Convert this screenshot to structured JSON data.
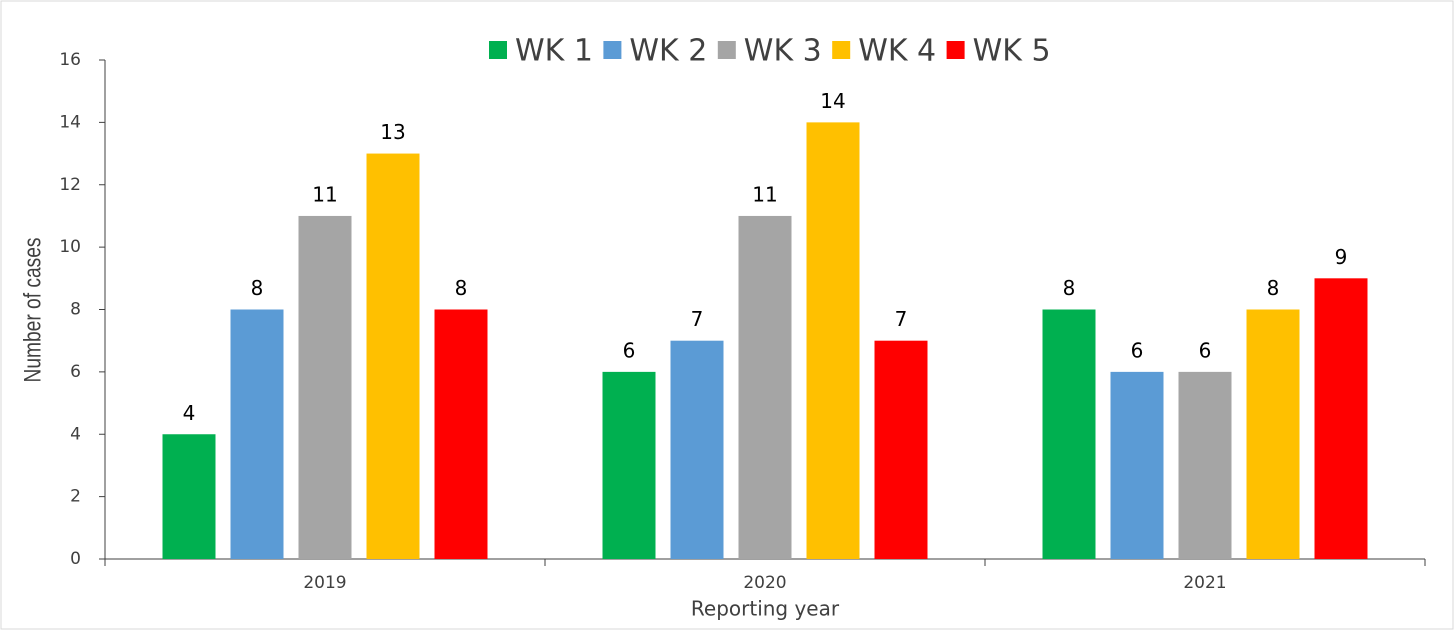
{
  "chart_data": {
    "type": "bar",
    "categories": [
      "2019",
      "2020",
      "2021"
    ],
    "series": [
      {
        "name": "WK 1",
        "color": "#00b050",
        "values": [
          4,
          6,
          8
        ]
      },
      {
        "name": "WK 2",
        "color": "#5b9bd5",
        "values": [
          8,
          7,
          6
        ]
      },
      {
        "name": "WK 3",
        "color": "#a5a5a5",
        "values": [
          11,
          11,
          6
        ]
      },
      {
        "name": "WK 4",
        "color": "#ffc000",
        "values": [
          13,
          14,
          8
        ]
      },
      {
        "name": "WK 5",
        "color": "#ff0000",
        "values": [
          8,
          7,
          9
        ]
      }
    ],
    "ylabel": "Number of cases",
    "xlabel": "Reporting year",
    "ylim": [
      0,
      16
    ],
    "yticks": [
      0,
      2,
      4,
      6,
      8,
      10,
      12,
      14,
      16
    ],
    "legend": "top",
    "data_labels": true
  }
}
